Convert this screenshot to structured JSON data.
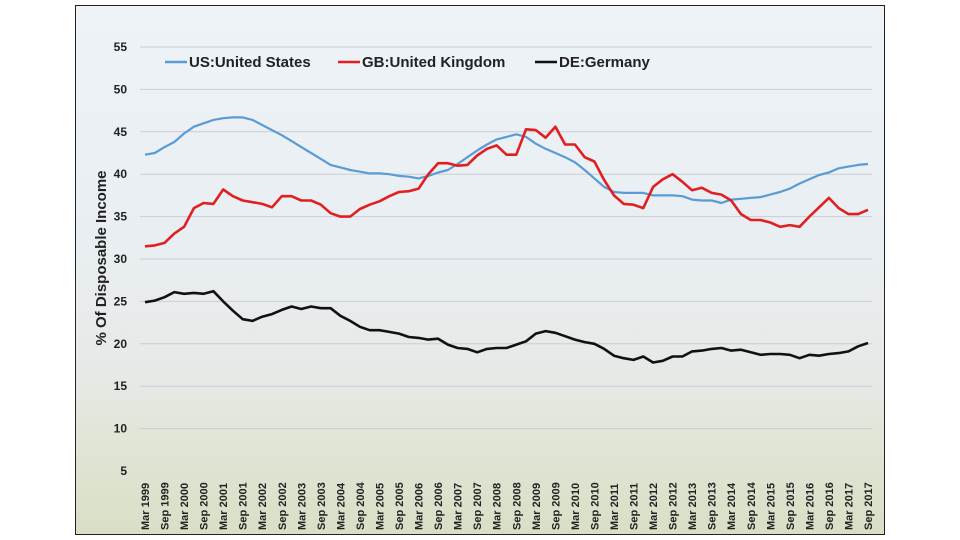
{
  "chart_data": {
    "type": "line",
    "title": "",
    "xlabel": "",
    "ylabel": "% Of Disposable Income",
    "ylim": [
      5,
      55
    ],
    "yticks": [
      "5",
      "10",
      "15",
      "20",
      "25",
      "30",
      "35",
      "40",
      "45",
      "50",
      "55"
    ],
    "grid": true,
    "legend_placement": "top",
    "x_tick_labels": [
      "Mar 1999",
      "Sep 1999",
      "Mar 2000",
      "Sep 2000",
      "Mar 2001",
      "Sep 2001",
      "Mar 2002",
      "Sep 2002",
      "Mar 2003",
      "Sep 2003",
      "Mar 2004",
      "Sep 2004",
      "Mar 2005",
      "Sep 2005",
      "Mar 2006",
      "Sep 2006",
      "Mar 2007",
      "Sep 2007",
      "Mar 2008",
      "Sep 2008",
      "Mar 2009",
      "Sep 2009",
      "Mar 2010",
      "Sep 2010",
      "Mar 2011",
      "Sep 2011",
      "Mar 2012",
      "Sep 2012",
      "Mar 2013",
      "Sep 2013",
      "Mar 2014",
      "Sep 2014",
      "Mar 2015",
      "Sep 2015",
      "Mar 2016",
      "Sep 2016",
      "Mar 2017",
      "Sep 2017"
    ],
    "x_frequency": "quarterly, Mar 1999 to Sep 2017",
    "series": [
      {
        "name": "US:United States",
        "color": "#5b9bd5",
        "values": [
          42.3,
          42.5,
          43.2,
          43.8,
          44.8,
          45.6,
          46.0,
          46.4,
          46.6,
          46.7,
          46.7,
          46.4,
          45.8,
          45.2,
          44.6,
          43.9,
          43.2,
          42.5,
          41.8,
          41.1,
          40.8,
          40.5,
          40.3,
          40.1,
          40.1,
          40.0,
          39.8,
          39.7,
          39.5,
          39.8,
          40.2,
          40.5,
          41.2,
          42.0,
          42.8,
          43.5,
          44.1,
          44.4,
          44.7,
          44.4,
          43.6,
          43.0,
          42.5,
          42.0,
          41.4,
          40.5,
          39.5,
          38.5,
          37.9,
          37.8,
          37.8,
          37.8,
          37.5,
          37.5,
          37.5,
          37.4,
          37.0,
          36.9,
          36.9,
          36.6,
          37.0,
          37.1,
          37.2,
          37.3,
          37.6,
          37.9,
          38.3,
          38.9,
          39.4,
          39.9,
          40.2,
          40.7,
          40.9,
          41.1,
          41.2
        ]
      },
      {
        "name": "GB:United Kingdom",
        "color": "#e02020",
        "values": [
          31.5,
          31.6,
          31.9,
          33.0,
          33.8,
          36.0,
          36.6,
          36.5,
          38.2,
          37.4,
          36.9,
          36.7,
          36.5,
          36.1,
          37.4,
          37.4,
          36.9,
          36.9,
          36.4,
          35.4,
          35.0,
          35.0,
          35.9,
          36.4,
          36.8,
          37.4,
          37.9,
          38.0,
          38.3,
          40.0,
          41.3,
          41.3,
          41.0,
          41.1,
          42.2,
          43.0,
          43.4,
          42.3,
          42.3,
          45.3,
          45.2,
          44.3,
          45.6,
          43.5,
          43.5,
          42.0,
          41.5,
          39.3,
          37.5,
          36.5,
          36.4,
          36.0,
          38.5,
          39.4,
          40.0,
          39.1,
          38.1,
          38.4,
          37.8,
          37.6,
          36.9,
          35.3,
          34.6,
          34.6,
          34.3,
          33.8,
          34.0,
          33.8,
          35.0,
          36.1,
          37.2,
          36.0,
          35.3,
          35.3,
          35.8
        ]
      },
      {
        "name": "DE:Germany",
        "color": "#111111",
        "values": [
          24.9,
          25.1,
          25.5,
          26.1,
          25.9,
          26.0,
          25.9,
          26.2,
          25.0,
          23.9,
          22.9,
          22.7,
          23.2,
          23.5,
          24.0,
          24.4,
          24.1,
          24.4,
          24.2,
          24.2,
          23.3,
          22.7,
          22.0,
          21.6,
          21.6,
          21.4,
          21.2,
          20.8,
          20.7,
          20.5,
          20.6,
          19.9,
          19.5,
          19.4,
          19.0,
          19.4,
          19.5,
          19.5,
          19.9,
          20.3,
          21.2,
          21.5,
          21.3,
          20.9,
          20.5,
          20.2,
          20.0,
          19.4,
          18.6,
          18.3,
          18.1,
          18.5,
          17.8,
          18.0,
          18.5,
          18.5,
          19.1,
          19.2,
          19.4,
          19.5,
          19.2,
          19.3,
          19.0,
          18.7,
          18.8,
          18.8,
          18.7,
          18.3,
          18.7,
          18.6,
          18.8,
          18.9,
          19.1,
          19.7,
          20.1
        ]
      }
    ]
  }
}
